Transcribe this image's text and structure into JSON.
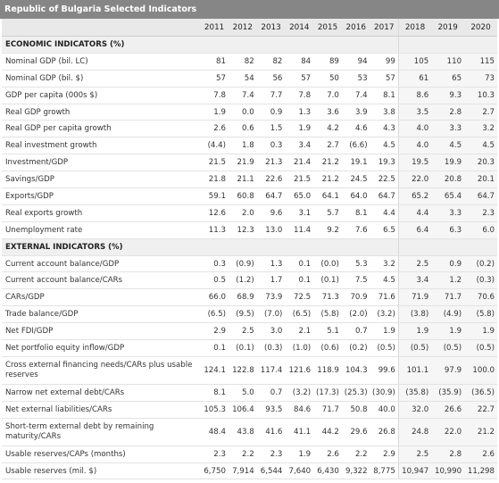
{
  "title": "Republic of Bulgaria Selected Indicators",
  "years": [
    "2011",
    "2012",
    "2013",
    "2014",
    "2015",
    "2016",
    "2017",
    "2018",
    "2019",
    "2020"
  ],
  "sections": [
    {
      "heading": "ECONOMIC INDICATORS (%)",
      "rows": [
        {
          "label": "Nominal GDP (bil. LC)",
          "values": [
            "81",
            "82",
            "82",
            "84",
            "89",
            "94",
            "99",
            "105",
            "110",
            "115"
          ]
        },
        {
          "label": "Nominal GDP (bil. $)",
          "values": [
            "57",
            "54",
            "56",
            "57",
            "50",
            "53",
            "57",
            "61",
            "65",
            "73"
          ]
        },
        {
          "label": "GDP per capita (000s $)",
          "values": [
            "7.8",
            "7.4",
            "7.7",
            "7.8",
            "7.0",
            "7.4",
            "8.1",
            "8.6",
            "9.3",
            "10.3"
          ]
        },
        {
          "label": "Real GDP growth",
          "values": [
            "1.9",
            "0.0",
            "0.9",
            "1.3",
            "3.6",
            "3.9",
            "3.8",
            "3.5",
            "2.8",
            "2.7"
          ]
        },
        {
          "label": "Real GDP per capita growth",
          "values": [
            "2.6",
            "0.6",
            "1.5",
            "1.9",
            "4.2",
            "4.6",
            "4.3",
            "4.0",
            "3.3",
            "3.2"
          ]
        },
        {
          "label": "Real investment growth",
          "values": [
            "(4.4)",
            "1.8",
            "0.3",
            "3.4",
            "2.7",
            "(6.6)",
            "4.5",
            "4.0",
            "4.5",
            "4.5"
          ]
        },
        {
          "label": "Investment/GDP",
          "values": [
            "21.5",
            "21.9",
            "21.3",
            "21.4",
            "21.2",
            "19.1",
            "19.3",
            "19.5",
            "19.9",
            "20.3"
          ]
        },
        {
          "label": "Savings/GDP",
          "values": [
            "21.8",
            "21.1",
            "22.6",
            "21.5",
            "21.2",
            "24.5",
            "22.5",
            "22.0",
            "20.8",
            "20.1"
          ]
        },
        {
          "label": "Exports/GDP",
          "values": [
            "59.1",
            "60.8",
            "64.7",
            "65.0",
            "64.1",
            "64.0",
            "64.7",
            "65.2",
            "65.4",
            "64.7"
          ]
        },
        {
          "label": "Real exports growth",
          "values": [
            "12.6",
            "2.0",
            "9.6",
            "3.1",
            "5.7",
            "8.1",
            "4.4",
            "4.4",
            "3.3",
            "2.3"
          ]
        },
        {
          "label": "Unemployment rate",
          "values": [
            "11.3",
            "12.3",
            "13.0",
            "11.4",
            "9.2",
            "7.6",
            "6.5",
            "6.4",
            "6.3",
            "6.0"
          ]
        }
      ]
    },
    {
      "heading": "EXTERNAL INDICATORS (%)",
      "rows": [
        {
          "label": "Current account balance/GDP",
          "values": [
            "0.3",
            "(0.9)",
            "1.3",
            "0.1",
            "(0.0)",
            "5.3",
            "3.2",
            "2.5",
            "0.9",
            "(0.2)"
          ]
        },
        {
          "label": "Current account balance/CARs",
          "values": [
            "0.5",
            "(1.2)",
            "1.7",
            "0.1",
            "(0.1)",
            "7.5",
            "4.5",
            "3.4",
            "1.2",
            "(0.3)"
          ]
        },
        {
          "label": "CARs/GDP",
          "values": [
            "66.0",
            "68.9",
            "73.9",
            "72.5",
            "71.3",
            "70.9",
            "71.6",
            "71.9",
            "71.7",
            "70.6"
          ]
        },
        {
          "label": "Trade balance/GDP",
          "values": [
            "(6.5)",
            "(9.5)",
            "(7.0)",
            "(6.5)",
            "(5.8)",
            "(2.0)",
            "(3.2)",
            "(3.8)",
            "(4.9)",
            "(5.8)"
          ]
        },
        {
          "label": "Net FDI/GDP",
          "values": [
            "2.9",
            "2.5",
            "3.0",
            "2.1",
            "5.1",
            "0.7",
            "1.9",
            "1.9",
            "1.9",
            "1.9"
          ]
        },
        {
          "label": "Net portfolio equity inflow/GDP",
          "values": [
            "0.1",
            "(0.1)",
            "(0.3)",
            "(1.0)",
            "(0.6)",
            "(0.2)",
            "(0.5)",
            "(0.5)",
            "(0.5)",
            "(0.5)"
          ]
        },
        {
          "label": "Cross external financing needs/CARs plus usable reserves",
          "values": [
            "124.1",
            "122.8",
            "117.4",
            "121.6",
            "118.9",
            "104.3",
            "99.6",
            "101.1",
            "97.9",
            "100.0"
          ],
          "tall": true
        },
        {
          "label": "Narrow net external debt/CARs",
          "values": [
            "8.1",
            "5.0",
            "0.7",
            "(3.2)",
            "(17.3)",
            "(25.3)",
            "(30.9)",
            "(35.8)",
            "(35.9)",
            "(36.5)"
          ]
        },
        {
          "label": "Net external liabilities/CARs",
          "values": [
            "105.3",
            "106.4",
            "93.5",
            "84.6",
            "71.7",
            "50.8",
            "40.0",
            "32.0",
            "26.6",
            "22.7"
          ]
        },
        {
          "label": "Short-term external debt by remaining maturity/CARs",
          "values": [
            "48.4",
            "43.8",
            "41.6",
            "41.1",
            "44.2",
            "29.6",
            "26.8",
            "24.8",
            "22.0",
            "21.2"
          ],
          "tall": true
        },
        {
          "label": "Usable reserves/CAPs (months)",
          "values": [
            "2.3",
            "2.2",
            "2.3",
            "1.9",
            "2.6",
            "2.2",
            "2.9",
            "2.5",
            "2.8",
            "2.6"
          ]
        },
        {
          "label": "Usable reserves (mil. $)",
          "values": [
            "6,750",
            "7,914",
            "6,544",
            "7,640",
            "6,430",
            "9,322",
            "8,775",
            "10,947",
            "10,990",
            "11,298"
          ]
        }
      ]
    }
  ]
}
